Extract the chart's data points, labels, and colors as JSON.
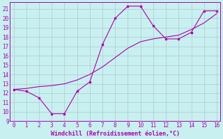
{
  "xlabel": "Windchill (Refroidissement éolien,°C)",
  "bg_color": "#c8f0f0",
  "line_color": "#aa00aa",
  "grid_color": "#b0c8c8",
  "x_data": [
    0,
    1,
    2,
    3,
    4,
    5,
    6,
    7,
    8,
    9,
    10,
    11,
    12,
    13,
    14,
    15,
    16
  ],
  "y_jagged": [
    12.4,
    12.2,
    11.5,
    9.8,
    9.8,
    12.2,
    13.2,
    17.2,
    20.0,
    21.3,
    21.3,
    19.2,
    17.8,
    17.8,
    18.5,
    20.8,
    20.8
  ],
  "y_smooth": [
    12.4,
    12.5,
    12.7,
    12.8,
    13.0,
    13.4,
    14.0,
    14.8,
    15.8,
    16.8,
    17.5,
    17.8,
    18.0,
    18.2,
    18.8,
    19.5,
    20.5
  ],
  "xlim": [
    -0.3,
    16.3
  ],
  "ylim": [
    9,
    21.7
  ],
  "xticks": [
    0,
    1,
    2,
    3,
    4,
    5,
    6,
    7,
    8,
    9,
    10,
    11,
    12,
    13,
    14,
    15,
    16
  ],
  "yticks": [
    9,
    10,
    11,
    12,
    13,
    14,
    15,
    16,
    17,
    18,
    19,
    20,
    21
  ]
}
